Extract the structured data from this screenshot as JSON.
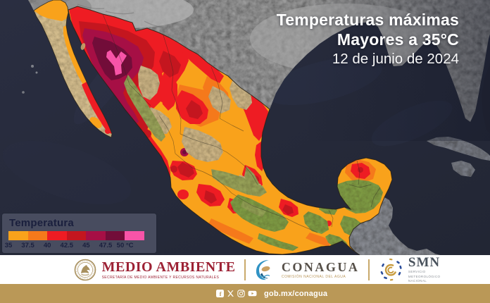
{
  "title": {
    "line1": "Temperaturas máximas",
    "line2": "Mayores a 35°C",
    "line3": "12 de junio de 2024"
  },
  "legend": {
    "title": "Temperatura",
    "ticks": [
      "35",
      "37.5",
      "40",
      "42.5",
      "45",
      "47.5",
      "50 °C"
    ],
    "colors": [
      "#F9A21B",
      "#F5791B",
      "#EE1C23",
      "#C4161F",
      "#A60F45",
      "#720D39",
      "#F854A8"
    ],
    "unit": "°C"
  },
  "map": {
    "region": "México",
    "ocean": "#252938",
    "us_land": "#9B9B9B",
    "terrain": {
      "tan": "#CBB384",
      "olive": "#97A159",
      "green": "#7F9C45",
      "baja_tan": "#D4BD8E"
    }
  },
  "footer": {
    "semarnat": {
      "name": "MEDIO AMBIENTE",
      "subtitle": "SECRETARÍA DE MEDIO AMBIENTE Y RECURSOS NATURALES",
      "color": "#9D2235"
    },
    "conagua": {
      "name": "CONAGUA",
      "subtitle": "COMISIÓN NACIONAL DEL AGUA"
    },
    "smn": {
      "name": "SMN",
      "subtitle_lines": [
        "SERVICIO",
        "METEOROLÓGICO",
        "NACIONAL"
      ]
    },
    "bar": {
      "url": "gob.mx/conagua",
      "bg": "#BA9857",
      "icons": [
        "facebook",
        "x",
        "instagram",
        "youtube"
      ]
    }
  }
}
